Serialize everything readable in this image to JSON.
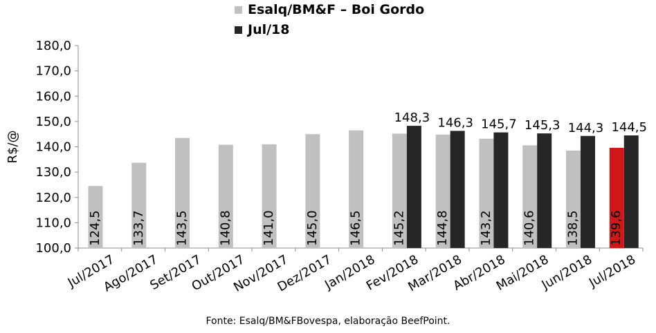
{
  "chart_data": {
    "type": "bar",
    "ylabel": "R$/@",
    "ylim": [
      100,
      180
    ],
    "yticks": [
      "100,0",
      "110,0",
      "120,0",
      "130,0",
      "140,0",
      "150,0",
      "160,0",
      "170,0",
      "180,0"
    ],
    "categories": [
      "Jul/2017",
      "Ago/2017",
      "Set/2017",
      "Out/2017",
      "Nov/2017",
      "Dez/2017",
      "Jan/2018",
      "Fev/2018",
      "Mar/2018",
      "Abr/2018",
      "Mai/2018",
      "Jun/2018",
      "Jul/2018"
    ],
    "series": [
      {
        "name": "Esalq/BM&F – Boi Gordo",
        "color": "#c0c0c0",
        "values": [
          124.5,
          133.7,
          143.5,
          140.8,
          141.0,
          145.0,
          146.5,
          145.2,
          144.8,
          143.2,
          140.6,
          138.5,
          139.6
        ],
        "labels": [
          "124,5",
          "133,7",
          "143,5",
          "140,8",
          "141,0",
          "145,0",
          "146,5",
          "145,2",
          "144,8",
          "143,2",
          "140,6",
          "138,5",
          "139,6"
        ],
        "highlight": {
          "index": 12,
          "color": "#d0181b"
        }
      },
      {
        "name": "Jul/18",
        "color": "#262626",
        "values": [
          null,
          null,
          null,
          null,
          null,
          null,
          null,
          148.3,
          146.3,
          145.7,
          145.3,
          144.3,
          144.5
        ],
        "labels": [
          null,
          null,
          null,
          null,
          null,
          null,
          null,
          "148,3",
          "146,3",
          "145,7",
          "145,3",
          "144,3",
          "144,5"
        ]
      }
    ],
    "legend_position": "top-center",
    "source": "Fonte: Esalq/BM&FBovespa, elaboração BeefPoint."
  }
}
